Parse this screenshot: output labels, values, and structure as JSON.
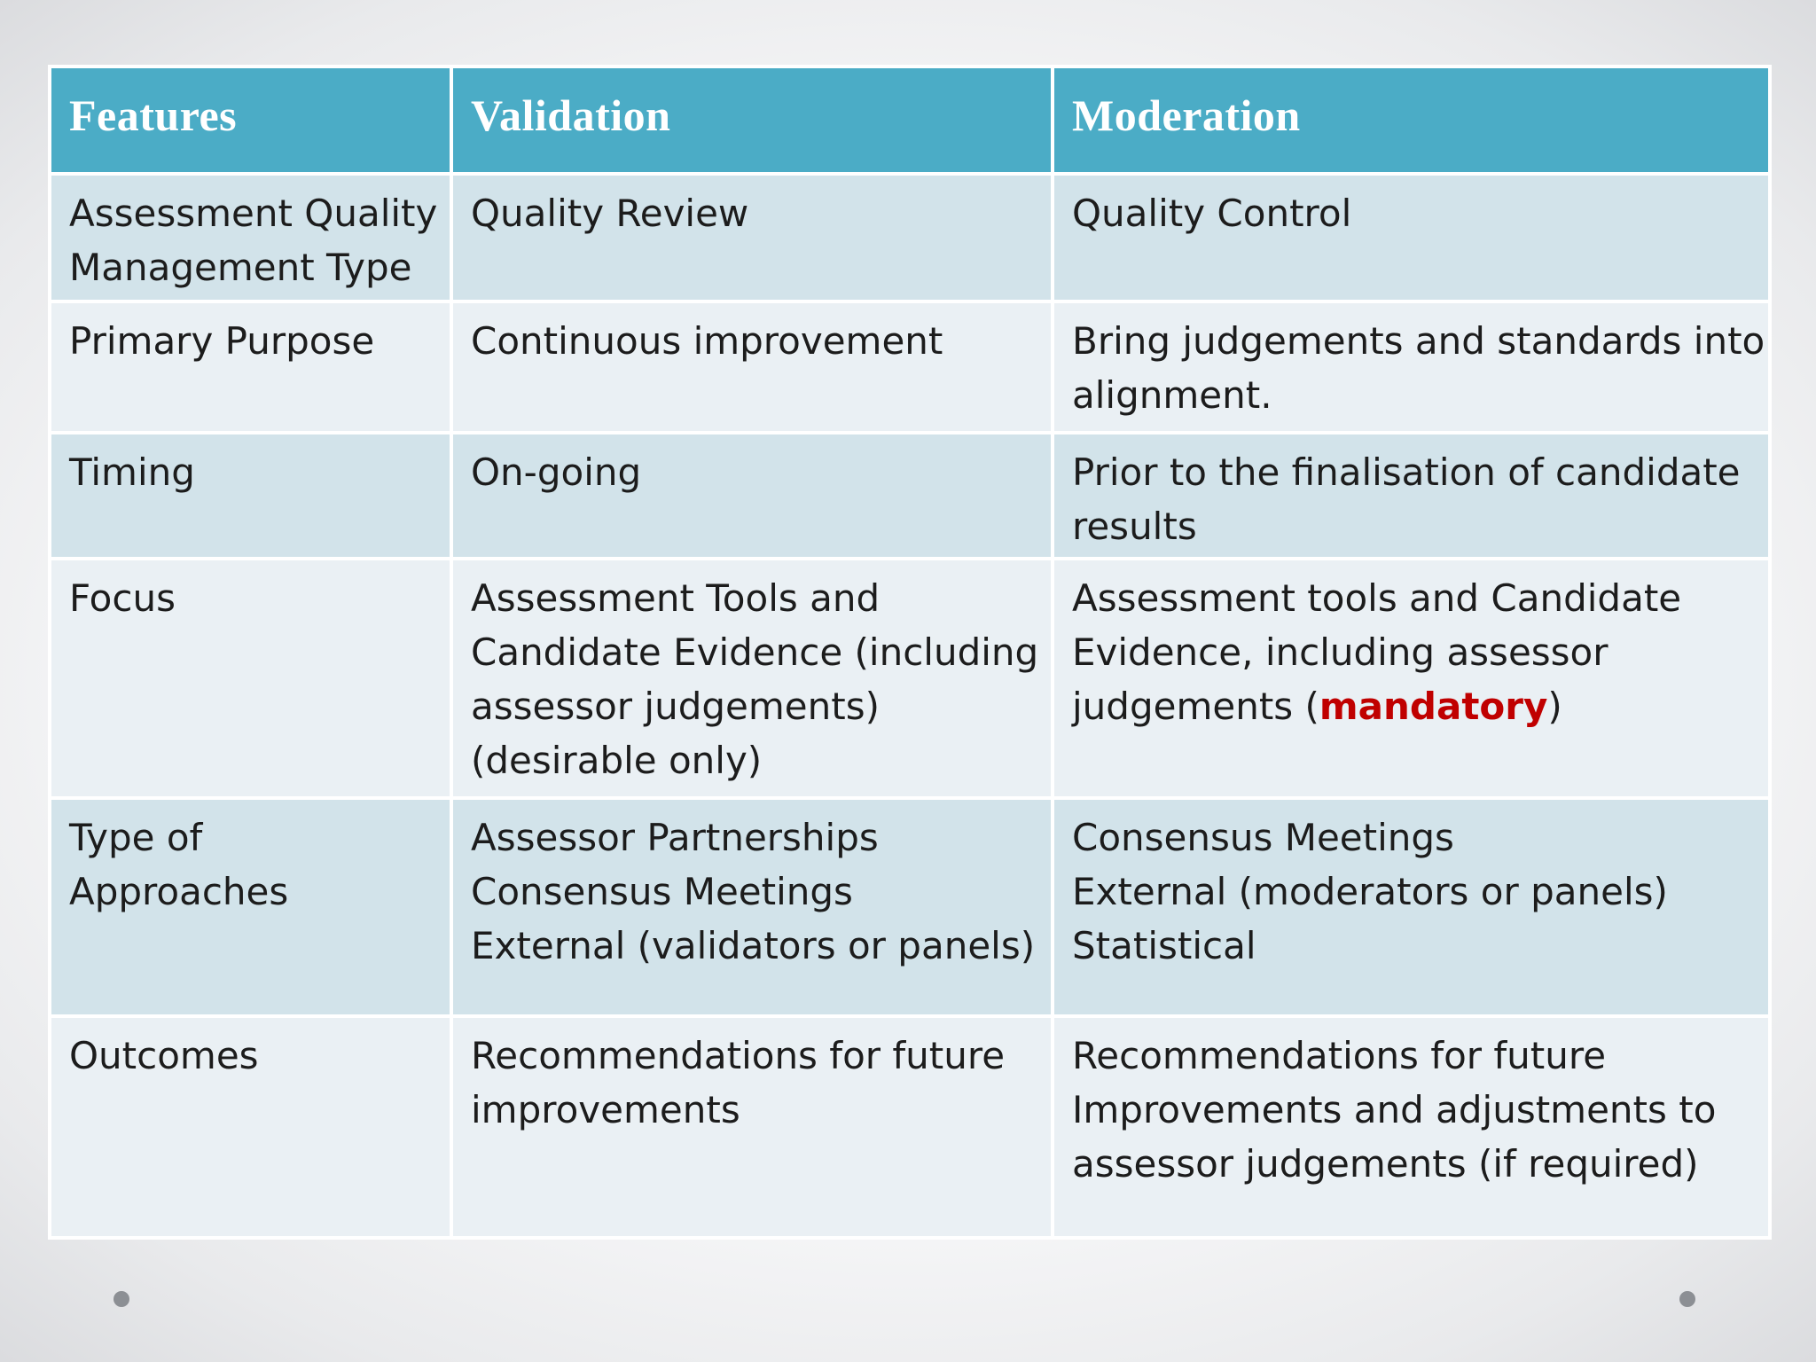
{
  "table": {
    "headers": [
      "Features",
      "Validation",
      "Moderation"
    ],
    "rows": [
      {
        "feature": [
          "Assessment Quality",
          "Management Type"
        ],
        "validation": [
          "Quality Review"
        ],
        "moderation": [
          "Quality Control"
        ]
      },
      {
        "feature": [
          "Primary Purpose"
        ],
        "validation": [
          "Continuous improvement"
        ],
        "moderation": [
          "Bring judgements and standards into",
          "alignment."
        ]
      },
      {
        "feature": [
          "Timing"
        ],
        "validation": [
          "On-going"
        ],
        "moderation": [
          "Prior to the finalisation of candidate",
          "results"
        ]
      },
      {
        "feature": [
          "Focus"
        ],
        "validation": [
          "Assessment Tools and",
          "Candidate Evidence (including",
          "assessor judgements)",
          "(desirable only)"
        ],
        "moderation": [
          "Assessment tools and Candidate",
          "Evidence, including assessor"
        ],
        "moderation_last": {
          "before": "judgements (",
          "highlight": "mandatory",
          "after": ")"
        }
      },
      {
        "feature": [
          "Type of",
          "Approaches"
        ],
        "validation": [
          "Assessor Partnerships",
          "Consensus Meetings",
          "External (validators or panels)"
        ],
        "moderation": [
          "Consensus Meetings",
          "External (moderators or panels)",
          "Statistical"
        ]
      },
      {
        "feature": [
          "Outcomes"
        ],
        "validation": [
          "Recommendations for future",
          "improvements"
        ],
        "moderation": [
          "Recommendations for future",
          "Improvements and adjustments to",
          "assessor judgements (if required)"
        ]
      }
    ]
  },
  "colors": {
    "header_bg": "#4bacc6",
    "row_odd_bg": "#d2e3ea",
    "row_even_bg": "#eaf0f4",
    "highlight": "#c00000"
  }
}
